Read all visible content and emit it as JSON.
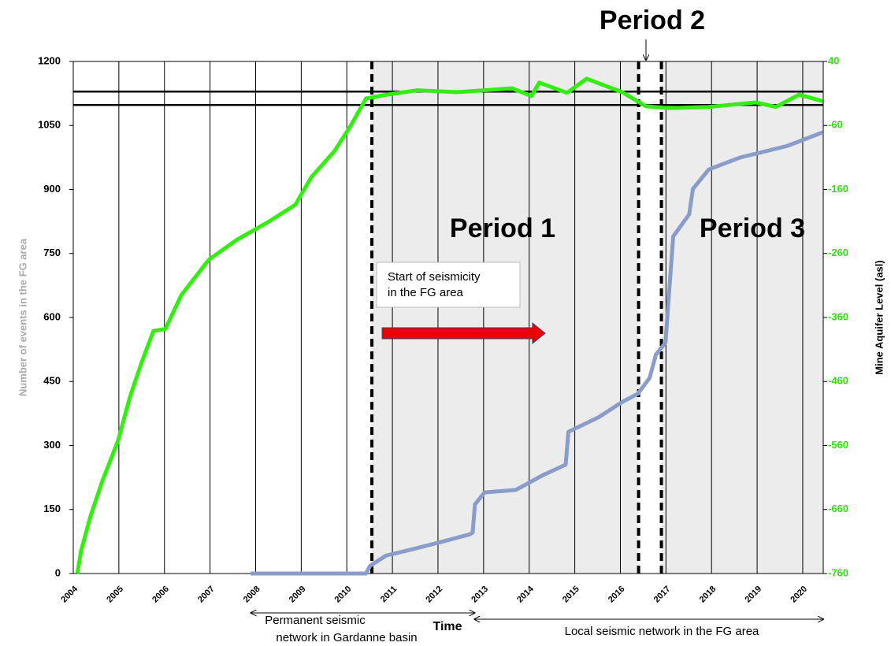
{
  "chart_data": {
    "type": "line",
    "y_label": "Number of events in the FG area",
    "y2_label": "Mine Aquifer Level (asl)",
    "x_label": "Time",
    "xlim": [
      2004,
      2020.45
    ],
    "xticks": [
      2004,
      2005,
      2006,
      2007,
      2008,
      2009,
      2010,
      2011,
      2012,
      2013,
      2014,
      2015,
      2016,
      2017,
      2018,
      2019,
      2020
    ],
    "ylim": [
      0,
      1200
    ],
    "yticks": [
      0,
      150,
      300,
      450,
      600,
      750,
      900,
      1050,
      1200
    ],
    "y2lim": [
      -760,
      40
    ],
    "y2ticks": [
      -760,
      -660,
      -560,
      -460,
      -360,
      -260,
      -160,
      -60,
      40
    ],
    "grid": "x",
    "series": [
      {
        "color": "#33ee11",
        "axis": "y2",
        "x": [
          2004.09,
          2004.17,
          2004.38,
          2004.64,
          2004.98,
          2005.24,
          2005.5,
          2005.76,
          2006.02,
          2006.37,
          2006.97,
          2007.58,
          2008.27,
          2008.87,
          2009.22,
          2009.73,
          2010.08,
          2010.42,
          2010.86,
          2011.55,
          2012.41,
          2013.62,
          2014.05,
          2014.22,
          2014.83,
          2015.26,
          2016.04,
          2016.56,
          2017.07,
          2017.94,
          2018.97,
          2019.41,
          2019.92,
          2020.44
        ],
        "values": [
          -760,
          -725,
          -670,
          -615,
          -553,
          -485,
          -430,
          -381,
          -378,
          -325,
          -270,
          -239,
          -211,
          -184,
          -141,
          -100,
          -61,
          -18,
          -12,
          -5,
          -8,
          -2,
          -14,
          7,
          -9,
          13,
          -8,
          -30,
          -33,
          -31,
          -24,
          -31,
          -12,
          -22
        ]
      },
      {
        "color": "#8a9cc8",
        "x": [
          2007.89,
          2010.42,
          2010.51,
          2010.86,
          2011.37,
          2012.07,
          2012.7,
          2012.76,
          2012.81,
          2013.02,
          2013.71,
          2014.31,
          2014.8,
          2014.86,
          2015.52,
          2016.04,
          2016.38,
          2016.64,
          2016.78,
          2016.99,
          2017.07,
          2017.16,
          2017.51,
          2017.59,
          2017.94,
          2018.63,
          2019.66,
          2020.44
        ],
        "values": [
          0,
          0,
          18,
          42,
          55,
          74,
          92,
          96,
          162,
          190,
          196,
          231,
          255,
          332,
          366,
          402,
          421,
          458,
          513,
          541,
          661,
          790,
          842,
          901,
          947,
          975,
          1002,
          1034
        ]
      }
    ],
    "reference_lines_y2": [
      -7,
      -28
    ],
    "period_boundaries": [
      2010.55,
      2016.4,
      2016.9
    ],
    "period_labels": [
      "Period 1",
      "Period 2",
      "Period 3"
    ],
    "text_box": [
      "Start of seismicity",
      "in the FG area"
    ],
    "arrow_x": [
      2010.55,
      2014.35
    ],
    "networks": [
      {
        "label": [
          "Permanent seismic",
          "network in Gardanne basin"
        ],
        "span": [
          2007.9,
          2012.8
        ]
      },
      {
        "label": [
          "Local seismic network in the FG area"
        ],
        "span": [
          2012.8,
          2020.45
        ]
      }
    ]
  }
}
